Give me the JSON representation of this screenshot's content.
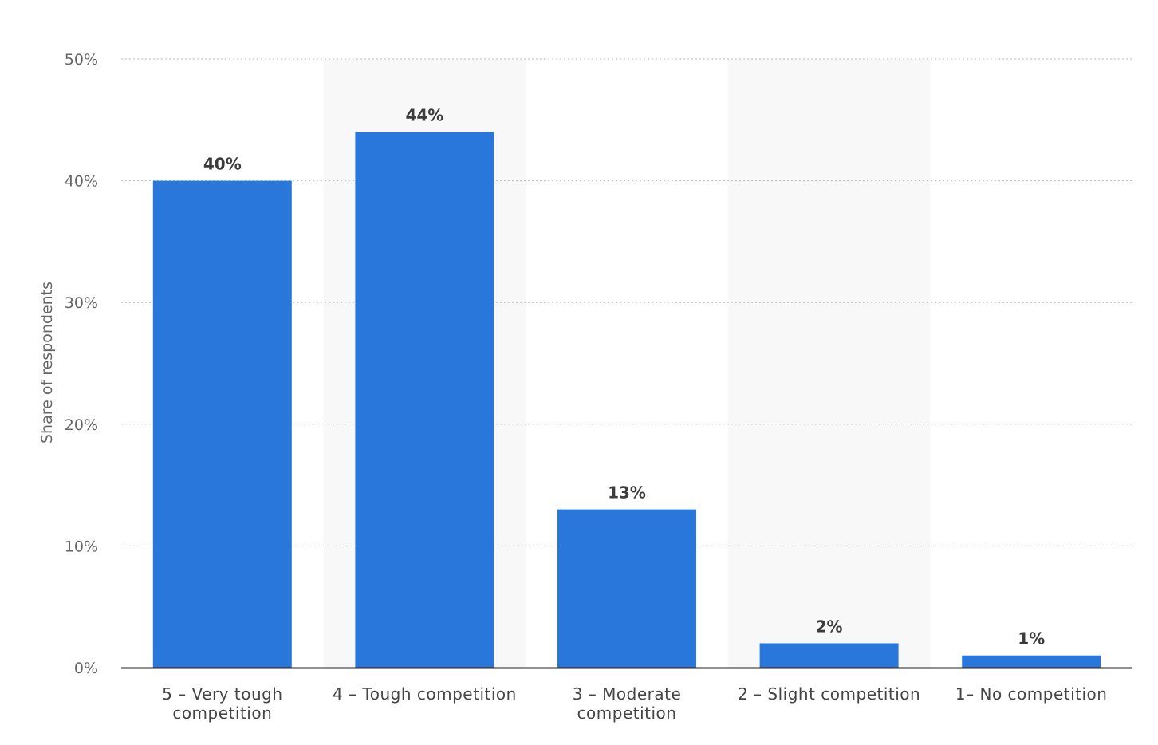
{
  "chart_data": {
    "type": "bar",
    "title": "",
    "xlabel": "",
    "ylabel": "Share of respondents",
    "categories": [
      [
        "5 – Very tough",
        "competition"
      ],
      [
        "4 – Tough competition"
      ],
      [
        "3 – Moderate",
        "competition"
      ],
      [
        "2 – Slight competition"
      ],
      [
        "1– No competition"
      ]
    ],
    "values": [
      40,
      44,
      13,
      2,
      1
    ],
    "value_labels": [
      "40%",
      "44%",
      "13%",
      "2%",
      "1%"
    ],
    "ylim": [
      0,
      50
    ],
    "yticks": [
      0,
      10,
      20,
      30,
      40,
      50
    ],
    "ytick_labels": [
      "0%",
      "10%",
      "20%",
      "30%",
      "40%",
      "50%"
    ],
    "grid": true,
    "bar_color": "#2a77dc",
    "band_color": "#f8f8f8",
    "grid_color": "#bbbbbb",
    "axis_color": "#222222"
  }
}
